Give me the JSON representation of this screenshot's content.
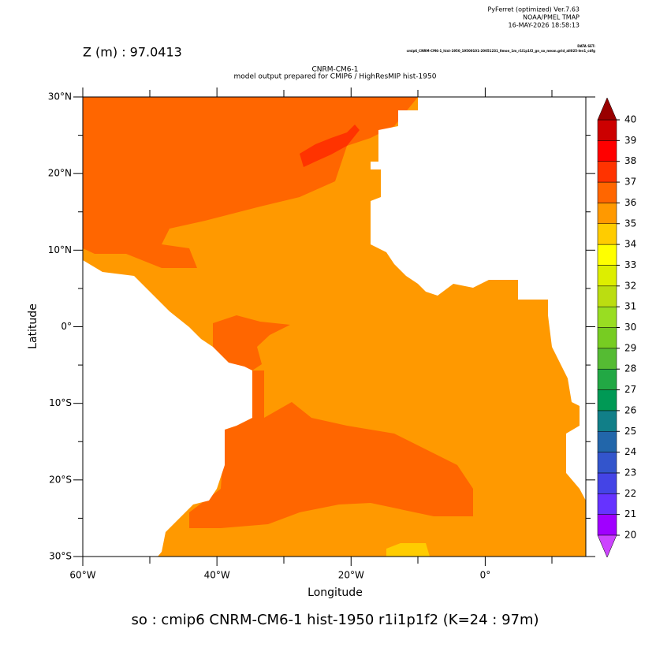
{
  "header": {
    "software": "PyFerret (optimized) Ver.7.63",
    "org": "NOAA/PMEL TMAP",
    "date": "16-MAY-2026 18:58:13",
    "depth": "Z (m) : 97.0413",
    "dataset_label": "DATA SET:",
    "dataset": "cmip6_CNRM-CM6-1_hist-1950_19500101-20051231_0mon_1m_r1i1p1f2_gn_so_mean.grid_all025-lev1_cdfg"
  },
  "chart_data": {
    "type": "map",
    "title": "CNRM-CM6-1",
    "subtitle": "model output prepared for CMIP6 / HighResMIP hist-1950",
    "x_label": "Longitude",
    "y_label": "Latitude",
    "xlim": [
      -60,
      15
    ],
    "ylim": [
      -30,
      30
    ],
    "xticks": [
      {
        "value": -60,
        "label": "60°W"
      },
      {
        "value": -40,
        "label": "40°W"
      },
      {
        "value": -20,
        "label": "20°W"
      },
      {
        "value": 0,
        "label": "0°"
      }
    ],
    "yticks": [
      {
        "value": 30,
        "label": "30°N"
      },
      {
        "value": 20,
        "label": "20°N"
      },
      {
        "value": 10,
        "label": "10°N"
      },
      {
        "value": 0,
        "label": "0°"
      },
      {
        "value": -10,
        "label": "10°S"
      },
      {
        "value": -20,
        "label": "20°S"
      },
      {
        "value": -30,
        "label": "30°S"
      }
    ],
    "colorbar": {
      "levels": [
        20,
        21,
        22,
        23,
        24,
        25,
        26,
        27,
        28,
        29,
        30,
        31,
        32,
        33,
        34,
        35,
        36,
        37,
        38,
        39,
        40
      ],
      "colors": [
        "#a000ff",
        "#6633ff",
        "#4444e6",
        "#3355cc",
        "#2266aa",
        "#117f88",
        "#009955",
        "#22a844",
        "#55bb33",
        "#77cc22",
        "#99dd22",
        "#bbdd11",
        "#ddee00",
        "#ffff00",
        "#ffcc00",
        "#ff9900",
        "#ff6600",
        "#ff3300",
        "#ff0000",
        "#cc0000"
      ],
      "under_color": "#cc44ff",
      "over_color": "#990000"
    },
    "footer": "so : cmip6 CNRM-CM6-1 hist-1950 r1i1p1f2   (K=24 : 97m)"
  }
}
